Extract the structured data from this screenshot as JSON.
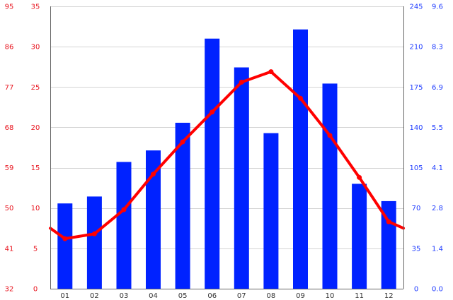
{
  "chart_data": {
    "type": "bar",
    "categories": [
      "01",
      "02",
      "03",
      "04",
      "05",
      "06",
      "07",
      "08",
      "09",
      "10",
      "11",
      "12"
    ],
    "series": [
      {
        "kind": "bar",
        "axis": "right-outer",
        "color": "#0022ff",
        "values": [
          74,
          80,
          110,
          120,
          144,
          217,
          192,
          135,
          225,
          178,
          91,
          76
        ]
      },
      {
        "kind": "line",
        "axis": "left-inner",
        "color": "#ff0000",
        "values": [
          6.2,
          6.8,
          9.8,
          14.2,
          18.2,
          21.9,
          25.6,
          26.9,
          23.6,
          19.0,
          13.8,
          8.3
        ]
      }
    ],
    "axes": {
      "left_outer": {
        "ticks": [
          "95",
          "86",
          "77",
          "68",
          "59",
          "50",
          "41",
          "32"
        ],
        "color": "#e8141e"
      },
      "left_inner": {
        "ticks": [
          "35",
          "30",
          "25",
          "20",
          "15",
          "10",
          "5",
          "0"
        ],
        "range": [
          0,
          35
        ],
        "color": "#e8141e"
      },
      "right_inner": {
        "ticks": [
          "245",
          "210",
          "175",
          "140",
          "105",
          "70",
          "35",
          "0"
        ],
        "range": [
          0,
          245
        ],
        "color": "#1f3cff"
      },
      "right_outer": {
        "ticks": [
          "9.6",
          "8.3",
          "6.9",
          "5.5",
          "4.1",
          "2.8",
          "1.4",
          "0.0"
        ],
        "color": "#1f3cff"
      }
    },
    "grid": true,
    "line_start_value": 7.5,
    "line_end_value": 7.5
  }
}
